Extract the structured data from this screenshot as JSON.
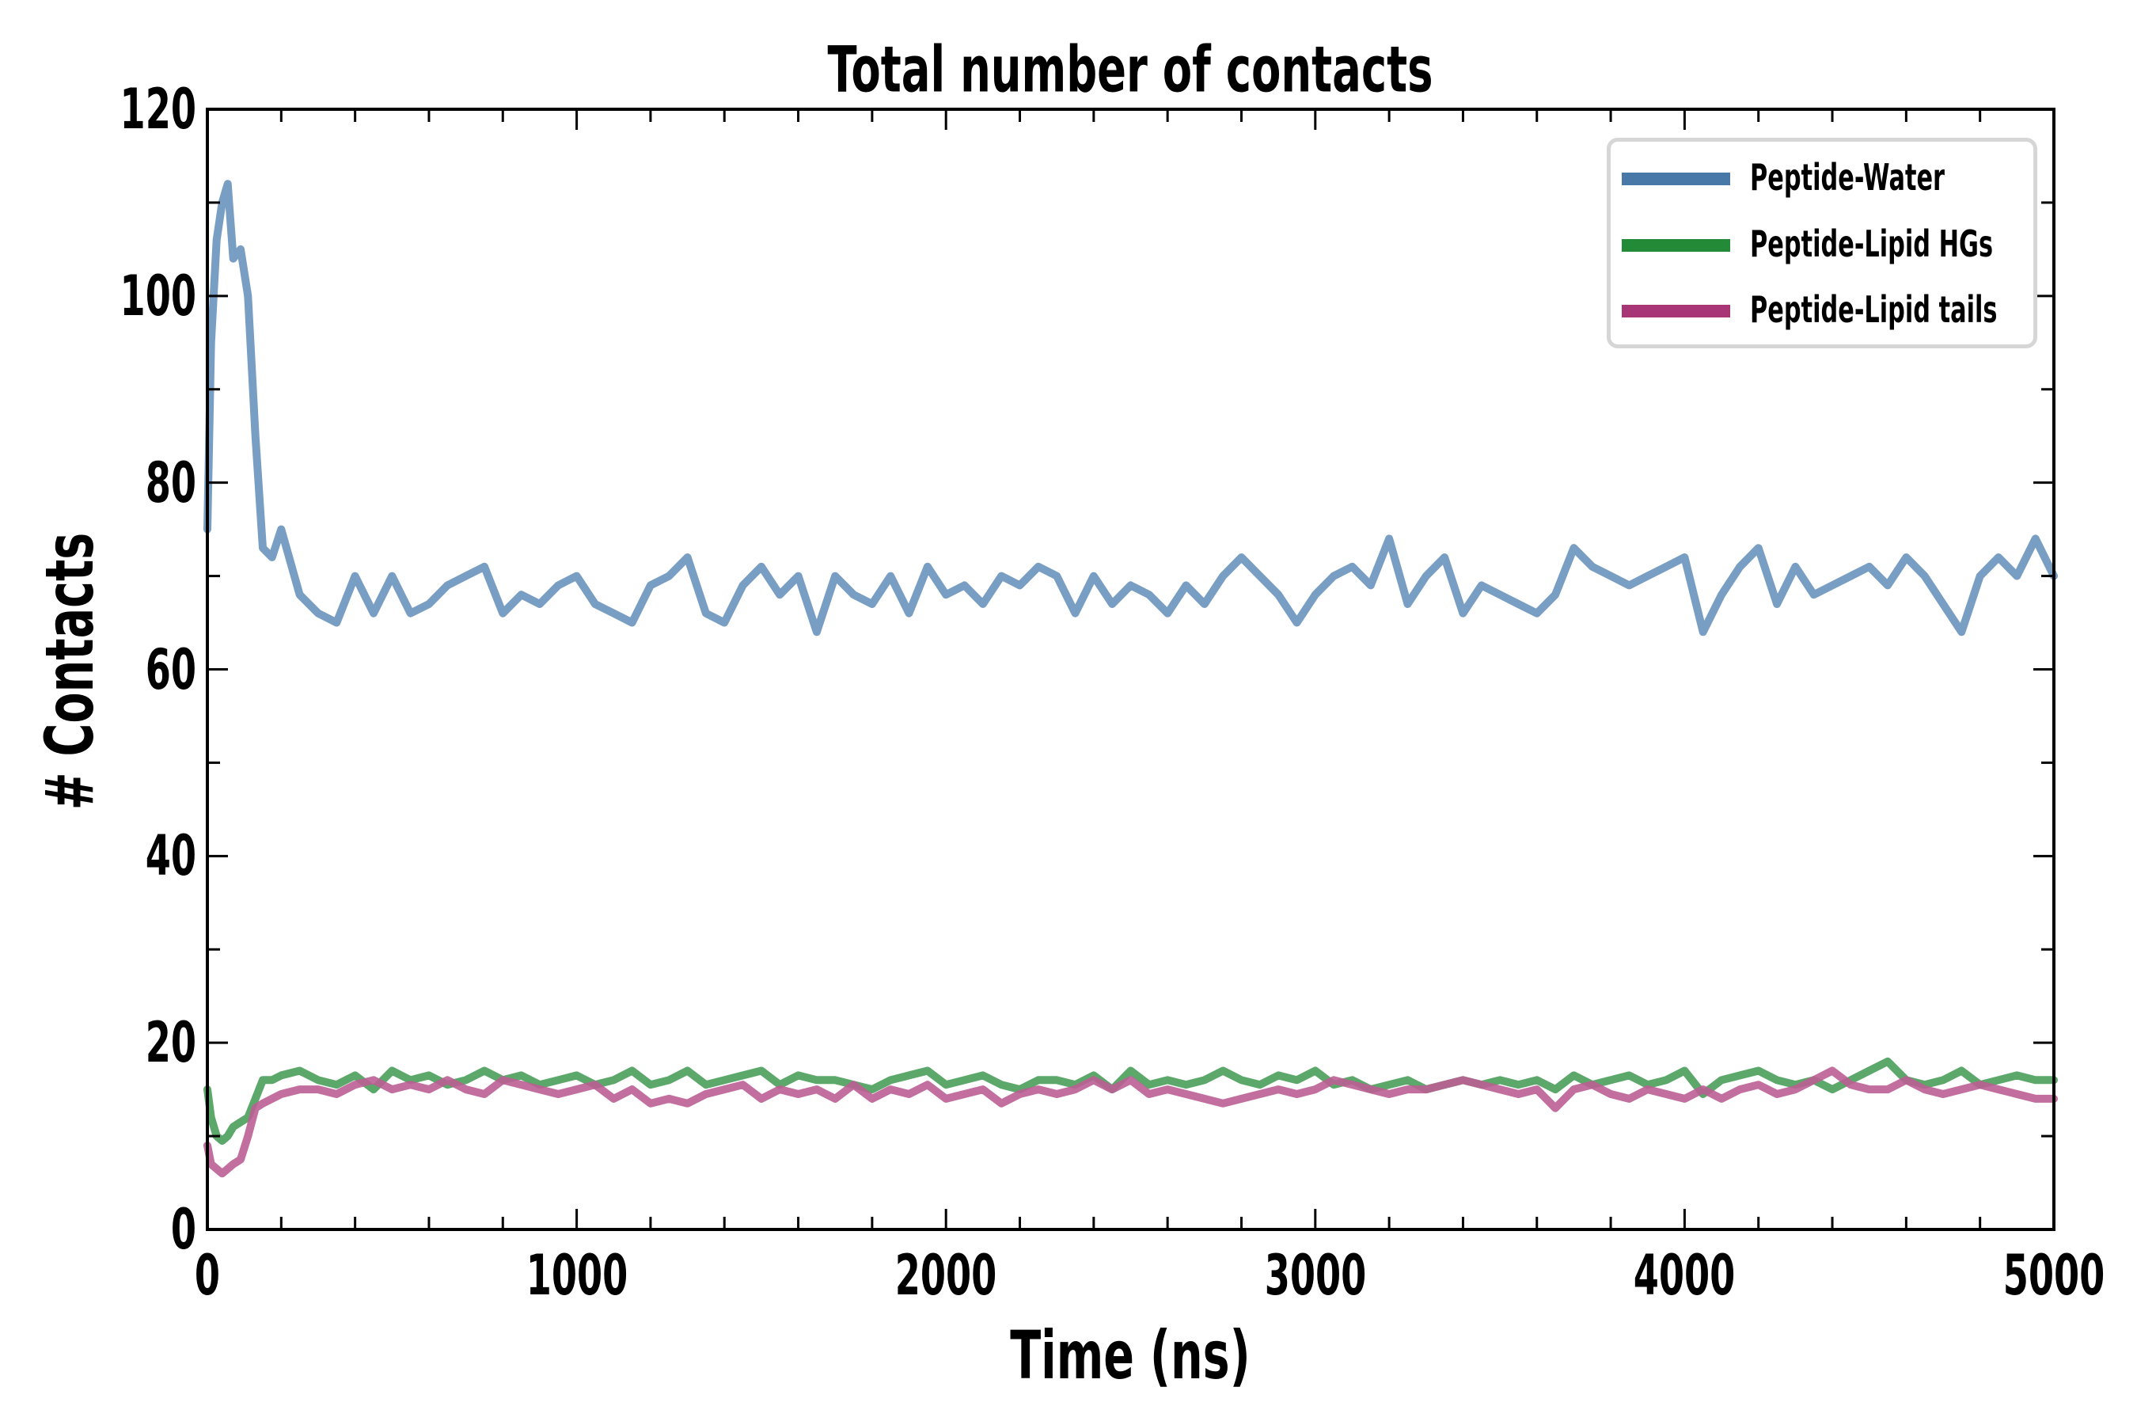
{
  "chart_data": {
    "type": "line",
    "title": "Total number of contacts",
    "xlabel": "Time (ns)",
    "ylabel": "# Contacts",
    "xlim": [
      0,
      5000
    ],
    "ylim": [
      0,
      120
    ],
    "xticks": [
      0,
      1000,
      2000,
      3000,
      4000,
      5000
    ],
    "yticks": [
      0,
      20,
      40,
      60,
      80,
      100,
      120
    ],
    "xtick_labels": [
      "0",
      "1000",
      "2000",
      "3000",
      "4000",
      "5000"
    ],
    "ytick_labels": [
      "0",
      "20",
      "40",
      "60",
      "80",
      "100",
      "120"
    ],
    "x_minor_step": 200,
    "y_minor_step": 10,
    "grid": false,
    "legend_position": "top-right",
    "x": [
      0,
      10,
      25,
      40,
      55,
      70,
      90,
      110,
      130,
      150,
      175,
      200,
      250,
      300,
      350,
      400,
      450,
      500,
      550,
      600,
      650,
      700,
      750,
      800,
      850,
      900,
      950,
      1000,
      1050,
      1100,
      1150,
      1200,
      1250,
      1300,
      1350,
      1400,
      1450,
      1500,
      1550,
      1600,
      1650,
      1700,
      1750,
      1800,
      1850,
      1900,
      1950,
      2000,
      2050,
      2100,
      2150,
      2200,
      2250,
      2300,
      2350,
      2400,
      2450,
      2500,
      2550,
      2600,
      2650,
      2700,
      2750,
      2800,
      2850,
      2900,
      2950,
      3000,
      3050,
      3100,
      3150,
      3200,
      3250,
      3300,
      3350,
      3400,
      3450,
      3500,
      3550,
      3600,
      3650,
      3700,
      3750,
      3800,
      3850,
      3900,
      3950,
      4000,
      4050,
      4100,
      4150,
      4200,
      4250,
      4300,
      4350,
      4400,
      4450,
      4500,
      4550,
      4600,
      4650,
      4700,
      4750,
      4800,
      4850,
      4900,
      4950,
      5000
    ],
    "series": [
      {
        "name": "Peptide-Water",
        "color": "#4878a8",
        "line_color": "#6a94bd",
        "values": [
          75,
          95,
          106,
          110,
          112,
          104,
          105,
          100,
          85,
          73,
          72,
          75,
          68,
          66,
          65,
          70,
          66,
          70,
          66,
          67,
          69,
          70,
          71,
          66,
          68,
          67,
          69,
          70,
          67,
          66,
          65,
          69,
          70,
          72,
          66,
          65,
          69,
          71,
          68,
          70,
          64,
          70,
          68,
          67,
          70,
          66,
          71,
          68,
          69,
          67,
          70,
          69,
          71,
          70,
          66,
          70,
          67,
          69,
          68,
          66,
          69,
          67,
          70,
          72,
          70,
          68,
          65,
          68,
          70,
          71,
          69,
          74,
          67,
          70,
          72,
          66,
          69,
          68,
          67,
          66,
          68,
          73,
          71,
          70,
          69,
          70,
          71,
          72,
          64,
          68,
          71,
          73,
          67,
          71,
          68,
          69,
          70,
          71,
          69,
          72,
          70,
          67,
          64,
          70,
          72,
          70,
          74,
          70
        ]
      },
      {
        "name": "Peptide-Lipid HGs",
        "color": "#238b38",
        "line_color": "#4a9e5a",
        "values": [
          15,
          12,
          10,
          9.5,
          10,
          11,
          11.5,
          12,
          14,
          16,
          16,
          16.5,
          17,
          16,
          15.5,
          16.5,
          15,
          17,
          16,
          16.5,
          15.5,
          16,
          17,
          16,
          16.5,
          15.5,
          16,
          16.5,
          15.5,
          16,
          17,
          15.5,
          16,
          17,
          15.5,
          16,
          16.5,
          17,
          15.5,
          16.5,
          16,
          16,
          15.5,
          15,
          16,
          16.5,
          17,
          15.5,
          16,
          16.5,
          15.5,
          15,
          16,
          16,
          15.5,
          16.5,
          15,
          17,
          15.5,
          16,
          15.5,
          16,
          17,
          16,
          15.5,
          16.5,
          16,
          17,
          15.5,
          16,
          15,
          15.5,
          16,
          15,
          15.5,
          16,
          15.5,
          16,
          15.5,
          16,
          15,
          16.5,
          15.5,
          16,
          16.5,
          15.5,
          16,
          17,
          14.5,
          16,
          16.5,
          17,
          16,
          15.5,
          16,
          15,
          16,
          17,
          18,
          16,
          15.5,
          16,
          17,
          15.5,
          16,
          16.5,
          16,
          16
        ]
      },
      {
        "name": "Peptide-Lipid tails",
        "color": "#a83575",
        "line_color": "#bb5e93",
        "values": [
          9,
          7,
          6.5,
          6,
          6.5,
          7,
          7.5,
          10,
          13,
          13.5,
          14,
          14.5,
          15,
          15,
          14.5,
          15.5,
          16,
          15,
          15.5,
          15,
          16,
          15,
          14.5,
          16,
          15.5,
          15,
          14.5,
          15,
          15.5,
          14,
          15,
          13.5,
          14,
          13.5,
          14.5,
          15,
          15.5,
          14,
          15,
          14.5,
          15,
          14,
          15.5,
          14,
          15,
          14.5,
          15.5,
          14,
          14.5,
          15,
          13.5,
          14.5,
          15,
          14.5,
          15,
          16,
          15,
          16,
          14.5,
          15,
          14.5,
          14,
          13.5,
          14,
          14.5,
          15,
          14.5,
          15,
          16,
          15.5,
          15,
          14.5,
          15,
          15,
          15.5,
          16,
          15.5,
          15,
          14.5,
          15,
          13,
          15,
          15.5,
          14.5,
          14,
          15,
          14.5,
          14,
          15,
          14,
          15,
          15.5,
          14.5,
          15,
          16,
          17,
          15.5,
          15,
          15,
          16,
          15,
          14.5,
          15,
          15.5,
          15,
          14.5,
          14,
          14
        ]
      }
    ]
  }
}
